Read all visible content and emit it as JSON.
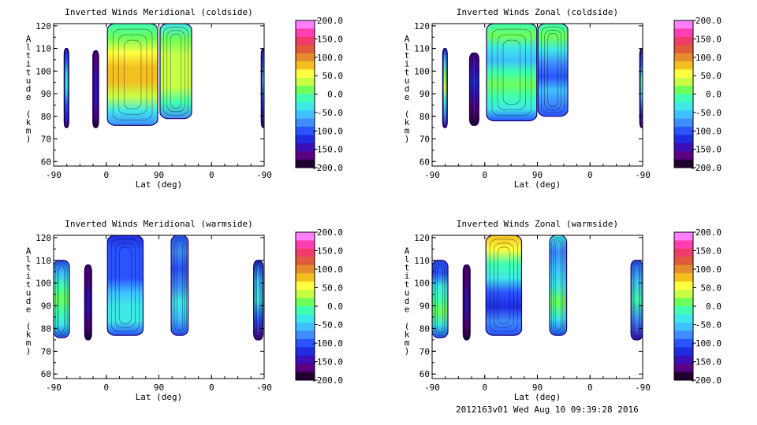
{
  "footer": "2012163v01 Wed Aug 10 09:39:28 2016",
  "colorscale": {
    "ticks": [
      "200.0",
      "150.0",
      "100.0",
      "50.0",
      "0.0",
      "-50.0",
      "-100.0",
      "-150.0",
      "-200.0"
    ],
    "colors": [
      "#ff7fff",
      "#ff3fb0",
      "#f03c6a",
      "#e05a3c",
      "#e58c2c",
      "#f4c020",
      "#ffff3f",
      "#c8ff46",
      "#6fff5a",
      "#3fffb0",
      "#3fe8e8",
      "#3fc0ff",
      "#3f8cff",
      "#2a54ff",
      "#1f2ce0",
      "#3c10b8",
      "#5a0080",
      "#200030"
    ]
  },
  "chart_data": [
    {
      "type": "heatmap",
      "title": "Inverted Winds Meridional (coldside)",
      "xlabel": "Lat (deg)",
      "ylabel": "Altitude (km)",
      "x_ticks": [
        "-90",
        "0",
        "90",
        "0",
        "-90"
      ],
      "y_ticks": [
        "60",
        "70",
        "80",
        "90",
        "100",
        "110",
        "120"
      ],
      "ylim": [
        58,
        121
      ],
      "blobs": [
        {
          "lat_range": [
            -72,
            -64
          ],
          "alt_range": [
            75,
            110
          ],
          "values": [
            -160,
            -120,
            -90,
            -60,
            -40,
            -60,
            -90,
            -120
          ]
        },
        {
          "lat_range": [
            -23,
            -13
          ],
          "alt_range": [
            75,
            109
          ],
          "values": [
            -180,
            -160,
            -150,
            -140,
            -150,
            -160,
            -170
          ]
        },
        {
          "lat_range": [
            2,
            88
          ],
          "alt_range": [
            76,
            121
          ],
          "values": [
            -80,
            -30,
            30,
            70,
            80,
            60,
            20,
            -20
          ]
        },
        {
          "lat_range": [
            92,
            146
          ],
          "alt_range": [
            79,
            121
          ],
          "values": [
            -70,
            0,
            40,
            40,
            40,
            20,
            -40
          ]
        },
        {
          "lat_range": [
            265,
            273
          ],
          "alt_range": [
            75,
            110
          ],
          "values": [
            -170,
            -130,
            -90,
            -60,
            -90,
            -130
          ]
        }
      ]
    },
    {
      "type": "heatmap",
      "title": "Inverted Winds Zonal (coldside)",
      "xlabel": "Lat (deg)",
      "ylabel": "Altitude (km)",
      "x_ticks": [
        "-90",
        "0",
        "90",
        "0",
        "-90"
      ],
      "y_ticks": [
        "60",
        "70",
        "80",
        "90",
        "100",
        "110",
        "120"
      ],
      "ylim": [
        58,
        121
      ],
      "blobs": [
        {
          "lat_range": [
            -72,
            -64
          ],
          "alt_range": [
            75,
            110
          ],
          "values": [
            -140,
            -80,
            -30,
            30,
            20,
            -60,
            -120
          ]
        },
        {
          "lat_range": [
            -26,
            -10
          ],
          "alt_range": [
            76,
            108
          ],
          "values": [
            -180,
            -160,
            -140,
            -130,
            -140,
            -160
          ]
        },
        {
          "lat_range": [
            3,
            89
          ],
          "alt_range": [
            78,
            121
          ],
          "values": [
            -90,
            -40,
            -10,
            20,
            -20,
            -50,
            -30,
            10,
            -20
          ]
        },
        {
          "lat_range": [
            91,
            142
          ],
          "alt_range": [
            80,
            121
          ],
          "values": [
            -100,
            -70,
            -60,
            -90,
            -70,
            -40,
            10,
            -20
          ]
        },
        {
          "lat_range": [
            265,
            273
          ],
          "alt_range": [
            75,
            110
          ],
          "values": [
            -160,
            -120,
            -50,
            -20,
            -90,
            -140
          ]
        }
      ]
    },
    {
      "type": "heatmap",
      "title": "Inverted Winds Meridional (warmside)",
      "xlabel": "Lat (deg)",
      "ylabel": "Altitude (km)",
      "x_ticks": [
        "-90",
        "0",
        "90",
        "0",
        "-90"
      ],
      "y_ticks": [
        "60",
        "70",
        "80",
        "90",
        "100",
        "110",
        "120"
      ],
      "ylim": [
        58,
        121
      ],
      "blobs": [
        {
          "lat_range": [
            -90,
            -63
          ],
          "alt_range": [
            76,
            110
          ],
          "values": [
            -110,
            -40,
            0,
            20,
            0,
            -60,
            -110
          ]
        },
        {
          "lat_range": [
            -37,
            -25
          ],
          "alt_range": [
            75,
            108
          ],
          "values": [
            -180,
            -160,
            -150,
            -150,
            -160,
            -170
          ]
        },
        {
          "lat_range": [
            2,
            63
          ],
          "alt_range": [
            77,
            121
          ],
          "values": [
            -100,
            -40,
            -30,
            -60,
            -90,
            -110,
            -90,
            -120
          ]
        },
        {
          "lat_range": [
            111,
            140
          ],
          "alt_range": [
            77,
            121
          ],
          "values": [
            -100,
            -50,
            -40,
            -80,
            -100,
            -80,
            -90
          ]
        },
        {
          "lat_range": [
            252,
            268
          ],
          "alt_range": [
            75,
            110
          ],
          "values": [
            -160,
            -90,
            -30,
            -60,
            -130
          ]
        }
      ]
    },
    {
      "type": "heatmap",
      "title": "Inverted Winds Zonal (warmside)",
      "xlabel": "Lat (deg)",
      "ylabel": "Altitude (km)",
      "x_ticks": [
        "-90",
        "0",
        "90",
        "0",
        "-90"
      ],
      "y_ticks": [
        "60",
        "70",
        "80",
        "90",
        "100",
        "110",
        "120"
      ],
      "ylim": [
        58,
        121
      ],
      "blobs": [
        {
          "lat_range": [
            -90,
            -63
          ],
          "alt_range": [
            76,
            110
          ],
          "values": [
            -110,
            -40,
            10,
            -10,
            -40,
            -90,
            -110
          ]
        },
        {
          "lat_range": [
            -37,
            -25
          ],
          "alt_range": [
            75,
            108
          ],
          "values": [
            -180,
            -160,
            -150,
            -150,
            -160,
            -170
          ]
        },
        {
          "lat_range": [
            2,
            63
          ],
          "alt_range": [
            77,
            121
          ],
          "values": [
            -110,
            -80,
            -120,
            -90,
            -40,
            -10,
            50,
            80
          ]
        },
        {
          "lat_range": [
            111,
            140
          ],
          "alt_range": [
            77,
            121
          ],
          "values": [
            -90,
            -30,
            10,
            -30,
            -60,
            -70,
            -40
          ]
        },
        {
          "lat_range": [
            250,
            270
          ],
          "alt_range": [
            75,
            110
          ],
          "values": [
            -150,
            -80,
            -20,
            -50,
            -110
          ]
        }
      ]
    }
  ]
}
